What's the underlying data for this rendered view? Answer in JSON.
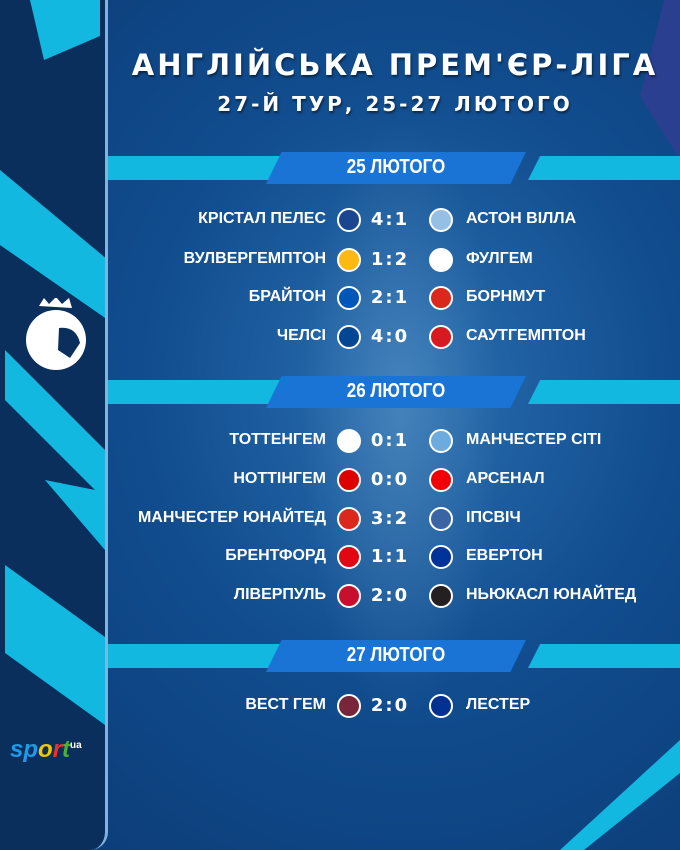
{
  "header": {
    "title": "АНГЛІЙСЬКА ПРЕМ'ЄР-ЛІГА",
    "subtitle": "27-Й ТУР, 25-27 ЛЮТОГО"
  },
  "days": [
    {
      "date": "25 ЛЮТОГО",
      "matches": [
        {
          "home": "КРІСТАЛ ПЕЛЕС",
          "score": "4:1",
          "away": "АСТОН ВІЛЛА",
          "home_color": "#1b458f",
          "away_color": "#95bfe5"
        },
        {
          "home": "ВУЛВЕРГЕМПТОН",
          "score": "1:2",
          "away": "ФУЛГЕМ",
          "home_color": "#fdb913",
          "away_color": "#ffffff"
        },
        {
          "home": "БРАЙТОН",
          "score": "2:1",
          "away": "БОРНМУТ",
          "home_color": "#0057b8",
          "away_color": "#da291c"
        },
        {
          "home": "ЧЕЛСІ",
          "score": "4:0",
          "away": "САУТГЕМПТОН",
          "home_color": "#034694",
          "away_color": "#d71920"
        }
      ]
    },
    {
      "date": "26 ЛЮТОГО",
      "matches": [
        {
          "home": "ТОТТЕНГЕМ",
          "score": "0:1",
          "away": "МАНЧЕСТЕР СІТІ",
          "home_color": "#ffffff",
          "away_color": "#6cabdd"
        },
        {
          "home": "НОТТІНГЕМ",
          "score": "0:0",
          "away": "АРСЕНАЛ",
          "home_color": "#dd0000",
          "away_color": "#ef0107"
        },
        {
          "home": "МАНЧЕСТЕР ЮНАЙТЕД",
          "score": "3:2",
          "away": "ІПСВІЧ",
          "home_color": "#da291c",
          "away_color": "#3a64a3"
        },
        {
          "home": "БРЕНТФОРД",
          "score": "1:1",
          "away": "ЕВЕРТОН",
          "home_color": "#e30613",
          "away_color": "#003399"
        },
        {
          "home": "ЛІВЕРПУЛЬ",
          "score": "2:0",
          "away": "НЬЮКАСЛ ЮНАЙТЕД",
          "home_color": "#c8102e",
          "away_color": "#241f20"
        }
      ]
    },
    {
      "date": "27 ЛЮТОГО",
      "matches": [
        {
          "home": "ВЕСТ ГЕМ",
          "score": "2:0",
          "away": "ЛЕСТЕР",
          "home_color": "#7a263a",
          "away_color": "#003090"
        }
      ]
    }
  ],
  "branding": {
    "logo_text": "sport",
    "logo_suffix": "ua"
  }
}
